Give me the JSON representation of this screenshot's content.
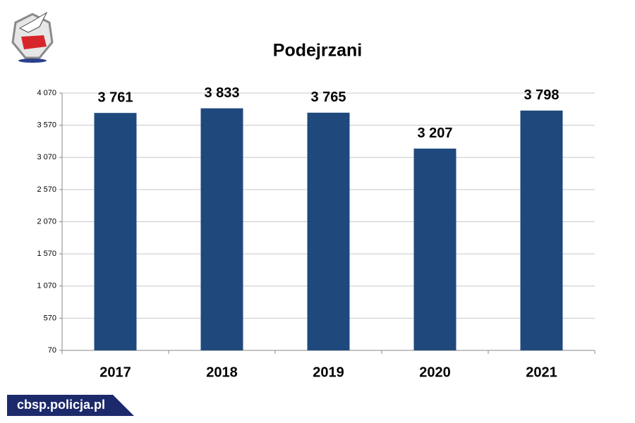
{
  "chart_data": {
    "type": "bar",
    "title": "Podejrzani",
    "categories": [
      "2017",
      "2018",
      "2019",
      "2020",
      "2021"
    ],
    "values": [
      3761,
      3833,
      3765,
      3207,
      3798
    ],
    "value_labels": [
      "3 761",
      "3 833",
      "3 765",
      "3 207",
      "3 798"
    ],
    "color": "#1f497d",
    "ylim": [
      70,
      4070
    ],
    "yticks": [
      70,
      570,
      {
        "value": 1070,
        "label": "1 070"
      },
      {
        "value": 1570,
        "label": "1 570"
      },
      {
        "value": 2070,
        "label": "2 070"
      },
      {
        "value": 2570,
        "label": "2 570"
      },
      {
        "value": 3070,
        "label": "3 070"
      },
      {
        "value": 3570,
        "label": "3 570"
      },
      {
        "value": 4070,
        "label": "4 070"
      }
    ],
    "grid": true
  },
  "footer": "cbsp.policja.pl"
}
